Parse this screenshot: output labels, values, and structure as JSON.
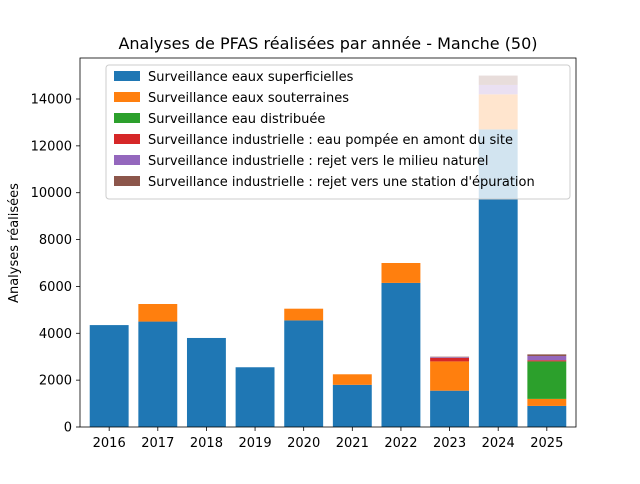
{
  "chart_data": {
    "type": "bar",
    "stacked": true,
    "title": "Analyses de PFAS réalisées par année - Manche (50)",
    "xlabel": "",
    "ylabel": "Analyses réalisées",
    "ylim": [
      0,
      15750
    ],
    "yticks": [
      0,
      2000,
      4000,
      6000,
      8000,
      10000,
      12000,
      14000
    ],
    "categories": [
      "2016",
      "2017",
      "2018",
      "2019",
      "2020",
      "2021",
      "2022",
      "2023",
      "2024",
      "2025"
    ],
    "legend_position": "top-right",
    "grid": false,
    "series": [
      {
        "name": "Surveillance eaux superficielles",
        "color": "#1f77b4",
        "values": [
          4350,
          4500,
          3800,
          2550,
          4550,
          1800,
          6150,
          1550,
          12700,
          900
        ]
      },
      {
        "name": "Surveillance eaux souterraines",
        "color": "#ff7f0e",
        "values": [
          0,
          750,
          0,
          0,
          500,
          450,
          850,
          1250,
          1500,
          300
        ]
      },
      {
        "name": "Surveillance eau distribuée",
        "color": "#2ca02c",
        "values": [
          0,
          0,
          0,
          0,
          0,
          0,
          0,
          0,
          0,
          1600
        ]
      },
      {
        "name": "Surveillance industrielle : eau pompée en amont du site",
        "color": "#d62728",
        "values": [
          0,
          0,
          0,
          0,
          0,
          0,
          0,
          150,
          0,
          50
        ]
      },
      {
        "name": "Surveillance industrielle : rejet vers le milieu naturel",
        "color": "#9467bd",
        "values": [
          0,
          0,
          0,
          0,
          0,
          0,
          0,
          30,
          400,
          180
        ]
      },
      {
        "name": "Surveillance industrielle : rejet vers une station d'épuration",
        "color": "#8c564b",
        "values": [
          0,
          0,
          0,
          0,
          0,
          0,
          0,
          20,
          400,
          70
        ]
      }
    ]
  }
}
